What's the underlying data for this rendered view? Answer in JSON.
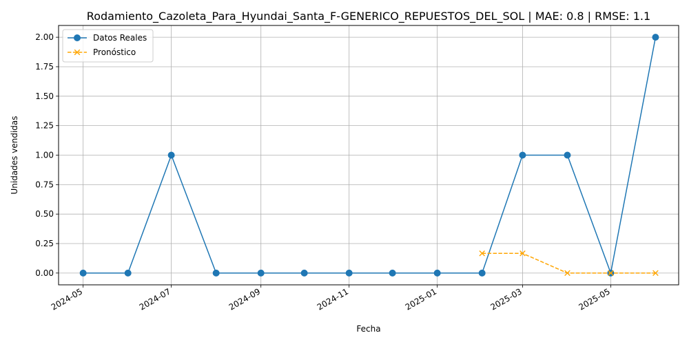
{
  "chart_data": {
    "type": "line",
    "title": "Rodamiento_Cazoleta_Para_Hyundai_Santa_F-GENERICO_REPUESTOS_DEL_SOL | MAE: 0.8 | RMSE: 1.1",
    "xlabel": "Fecha",
    "ylabel": "Unidades vendidas",
    "xlim": [
      "2024-04-14",
      "2025-06-17"
    ],
    "ylim": [
      -0.1,
      2.1
    ],
    "x_ticks": [
      "2024-05",
      "2024-07",
      "2024-09",
      "2024-11",
      "2025-01",
      "2025-03",
      "2025-05"
    ],
    "y_ticks": [
      "0.00",
      "0.25",
      "0.50",
      "0.75",
      "1.00",
      "1.25",
      "1.50",
      "1.75",
      "2.00"
    ],
    "grid": true,
    "legend_position": "top-left",
    "series": [
      {
        "name": "Datos Reales",
        "color": "#1f77b4",
        "line_style": "solid",
        "marker": "circle",
        "x": [
          "2024-05-01",
          "2024-06-01",
          "2024-07-01",
          "2024-08-01",
          "2024-09-01",
          "2024-10-01",
          "2024-11-01",
          "2024-12-01",
          "2025-01-01",
          "2025-02-01",
          "2025-03-01",
          "2025-04-01",
          "2025-05-01",
          "2025-06-01"
        ],
        "y": [
          0,
          0,
          1,
          0,
          0,
          0,
          0,
          0,
          0,
          0,
          1,
          1,
          0,
          2
        ]
      },
      {
        "name": "Pronóstico",
        "color": "#ffa500",
        "line_style": "dashed",
        "marker": "x",
        "x": [
          "2025-02-01",
          "2025-03-01",
          "2025-04-01",
          "2025-05-01",
          "2025-06-01"
        ],
        "y": [
          0.167,
          0.167,
          0,
          0,
          0
        ]
      }
    ]
  }
}
